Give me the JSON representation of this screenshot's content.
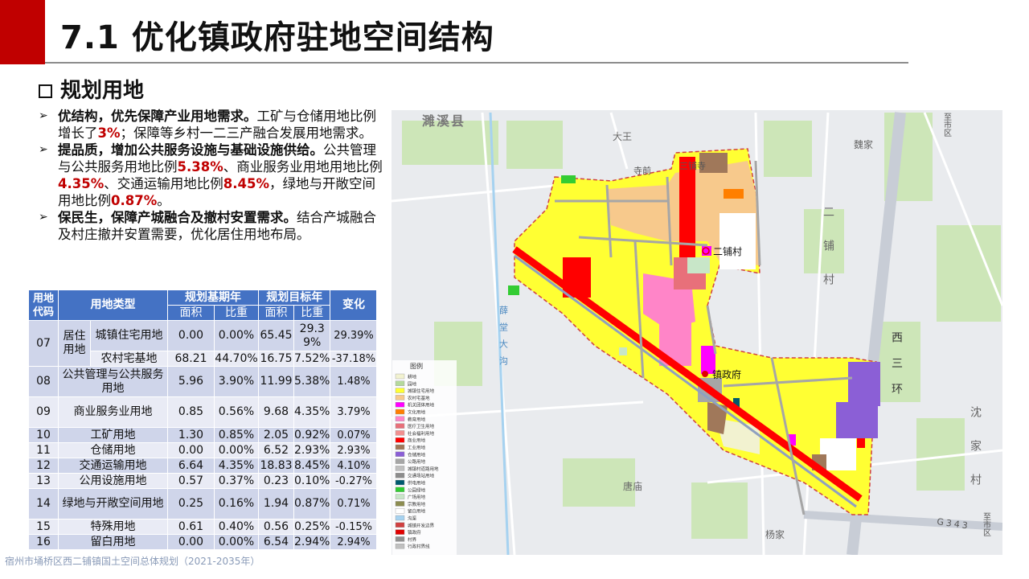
{
  "header": {
    "title": "7.1 优化镇政府驻地空间结构"
  },
  "section": {
    "heading": "规划用地"
  },
  "bullets": [
    [
      {
        "text": "优结构，优先保障产业用地需求。",
        "emphasis": "bold"
      },
      {
        "text": "工矿与仓储用地比例增长了",
        "emphasis": "plain"
      },
      {
        "text": "3%",
        "emphasis": "red"
      },
      {
        "text": "；保障等乡村一二三产融合发展用地需求。",
        "emphasis": "plain"
      }
    ],
    [
      {
        "text": "提品质，增加公共服务设施与基础设施供给。",
        "emphasis": "bold"
      },
      {
        "text": "公共管理与公共服务用地比例",
        "emphasis": "plain"
      },
      {
        "text": "5.38%",
        "emphasis": "red"
      },
      {
        "text": "、商业服务业用地用地比例",
        "emphasis": "plain"
      },
      {
        "text": "4.35%",
        "emphasis": "red"
      },
      {
        "text": "、交通运输用地比例",
        "emphasis": "plain"
      },
      {
        "text": "8.45%",
        "emphasis": "red"
      },
      {
        "text": "，绿地与开敞空间用地比例",
        "emphasis": "plain"
      },
      {
        "text": "0.87%",
        "emphasis": "red"
      },
      {
        "text": "。",
        "emphasis": "plain"
      }
    ],
    [
      {
        "text": "保民生，保障产城融合及撤村安置需求。",
        "emphasis": "bold"
      },
      {
        "text": "结合产城融合及村庄撤并安置需要，优化居住用地布局。",
        "emphasis": "plain"
      }
    ]
  ],
  "table": {
    "header": {
      "code": "用地代码",
      "type": "用地类型",
      "base": "规划基期年",
      "target": "规划目标年",
      "change": "变化",
      "area": "面积",
      "share": "比重"
    },
    "rows": [
      {
        "code": "07",
        "group": "居住用地",
        "items": [
          {
            "type": "城镇住宅用地",
            "values": [
              "0.00",
              "0.00%",
              "65.45",
              "29.39%",
              "29.39%"
            ]
          },
          {
            "type": "农村宅基地",
            "values": [
              "68.21",
              "44.70%",
              "16.75",
              "7.52%",
              "-37.18%"
            ]
          }
        ]
      },
      {
        "code": "08",
        "items": [
          {
            "type": "公共管理与公共服务用地",
            "values": [
              "5.96",
              "3.90%",
              "11.99",
              "5.38%",
              "1.48%"
            ]
          }
        ]
      },
      {
        "code": "09",
        "items": [
          {
            "type": "商业服务业用地",
            "values": [
              "0.85",
              "0.56%",
              "9.68",
              "4.35%",
              "3.79%"
            ]
          }
        ]
      },
      {
        "code": "10",
        "items": [
          {
            "type": "工矿用地",
            "values": [
              "1.30",
              "0.85%",
              "2.05",
              "0.92%",
              "0.07%"
            ]
          }
        ]
      },
      {
        "code": "11",
        "items": [
          {
            "type": "仓储用地",
            "values": [
              "0.00",
              "0.00%",
              "6.52",
              "2.93%",
              "2.93%"
            ]
          }
        ]
      },
      {
        "code": "12",
        "items": [
          {
            "type": "交通运输用地",
            "values": [
              "6.64",
              "4.35%",
              "18.83",
              "8.45%",
              "4.10%"
            ]
          }
        ]
      },
      {
        "code": "13",
        "items": [
          {
            "type": "公用设施用地",
            "values": [
              "0.57",
              "0.37%",
              "0.23",
              "0.10%",
              "-0.27%"
            ]
          }
        ]
      },
      {
        "code": "14",
        "items": [
          {
            "type": "绿地与开敞空间用地",
            "values": [
              "0.25",
              "0.16%",
              "1.94",
              "0.87%",
              "0.71%"
            ]
          }
        ]
      },
      {
        "code": "15",
        "items": [
          {
            "type": "特殊用地",
            "values": [
              "0.61",
              "0.40%",
              "0.56",
              "0.25%",
              "-0.15%"
            ]
          }
        ]
      },
      {
        "code": "16",
        "items": [
          {
            "type": "留白用地",
            "values": [
              "0.00",
              "0.00%",
              "6.54",
              "2.94%",
              "2.94%"
            ]
          }
        ]
      }
    ]
  },
  "map": {
    "labels": [
      "濉溪县",
      "大王",
      "魏家",
      "寺前",
      "三铺寺",
      "二铺村",
      "二铺村",
      "西三环",
      "沈家村",
      "唐庙",
      "杨家",
      "G343",
      "至市区",
      "至市区",
      "镇政府",
      "薛堂大沟"
    ],
    "legend": {
      "title": "图例",
      "items": [
        {
          "label": "耕地",
          "color": "#f2f2d0"
        },
        {
          "label": "园地",
          "color": "#b5d99c"
        },
        {
          "label": "城镇住宅用地",
          "color": "#ffff33"
        },
        {
          "label": "农村宅基地",
          "color": "#f7c98c"
        },
        {
          "label": "机关团体用地",
          "color": "#ff00ff"
        },
        {
          "label": "文化用地",
          "color": "#ff7f00"
        },
        {
          "label": "教育用地",
          "color": "#ff85c8"
        },
        {
          "label": "医疗卫生用地",
          "color": "#e8707a"
        },
        {
          "label": "社会福利用地",
          "color": "#f29090"
        },
        {
          "label": "商业用地",
          "color": "#ff0000"
        },
        {
          "label": "工业用地",
          "color": "#a0785a"
        },
        {
          "label": "仓储用地",
          "color": "#8b5fd6"
        },
        {
          "label": "公路用地",
          "color": "#a6a6a6"
        },
        {
          "label": "城镇村道路用地",
          "color": "#bfbfbf"
        },
        {
          "label": "交通场站用地",
          "color": "#8c8c8c"
        },
        {
          "label": "供电用地",
          "color": "#005a6e"
        },
        {
          "label": "公园绿地",
          "color": "#33cc33"
        },
        {
          "label": "广场用地",
          "color": "#c8e6c8"
        },
        {
          "label": "宗教用地",
          "color": "#8c8c50"
        },
        {
          "label": "留白用地",
          "color": "#ffffff"
        },
        {
          "label": "沟渠",
          "color": "#a6d2f0"
        },
        {
          "label": "城镇开发边界",
          "color": "#d04040"
        },
        {
          "label": "镇政府",
          "color": "#e00000"
        },
        {
          "label": "村界",
          "color": "#909090"
        },
        {
          "label": "行政村界线",
          "color": "#c0c0c0"
        }
      ]
    }
  },
  "footer": {
    "text": "宿州市埇桥区西二铺镇国土空间总体规划（2021-2035年）"
  }
}
